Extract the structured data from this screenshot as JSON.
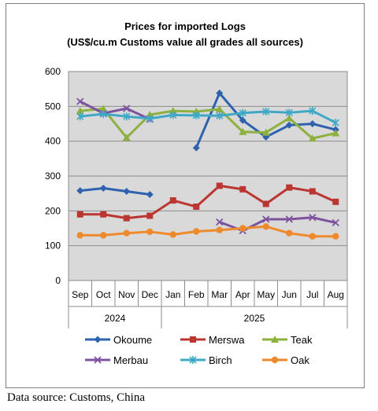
{
  "chart_data": {
    "type": "line",
    "title": "Prices for imported Logs",
    "subtitle": "(US$/cu.m Customs value all grades all sources)",
    "categories": [
      "Sep",
      "Oct",
      "Nov",
      "Dec",
      "Jan",
      "Feb",
      "Mar",
      "Apr",
      "May",
      "Jun",
      "Jul",
      "Aug"
    ],
    "year_groups": [
      {
        "label": "2024",
        "start": 0,
        "end": 3
      },
      {
        "label": "2025",
        "start": 4,
        "end": 11
      }
    ],
    "ylim": [
      0,
      600
    ],
    "yticks": [
      0,
      100,
      200,
      300,
      400,
      500,
      600
    ],
    "grid": true,
    "legend_position": "bottom",
    "series": [
      {
        "name": "Okoume",
        "color": "#2e62ae",
        "marker": "diamond",
        "values": [
          258,
          265,
          256,
          247,
          null,
          381,
          538,
          460,
          412,
          446,
          450,
          433
        ]
      },
      {
        "name": "Merswa",
        "color": "#bb3631",
        "marker": "square",
        "values": [
          190,
          190,
          179,
          186,
          230,
          212,
          272,
          262,
          220,
          267,
          256,
          226
        ]
      },
      {
        "name": "Teak",
        "color": "#8db03f",
        "marker": "triangle",
        "values": [
          487,
          493,
          410,
          476,
          487,
          485,
          492,
          427,
          425,
          466,
          408,
          423
        ]
      },
      {
        "name": "Merbau",
        "color": "#7d53a0",
        "marker": "x",
        "values": [
          514,
          480,
          494,
          463,
          null,
          null,
          168,
          143,
          176,
          176,
          181,
          166
        ]
      },
      {
        "name": "Birch",
        "color": "#3ea8c6",
        "marker": "asterisk",
        "values": [
          471,
          478,
          471,
          465,
          475,
          474,
          473,
          481,
          485,
          482,
          487,
          453
        ]
      },
      {
        "name": "Oak",
        "color": "#ef8a2c",
        "marker": "circle",
        "values": [
          130,
          130,
          136,
          140,
          132,
          141,
          145,
          150,
          155,
          136,
          127,
          127
        ]
      }
    ]
  },
  "source_note": "Data source: Customs, China"
}
